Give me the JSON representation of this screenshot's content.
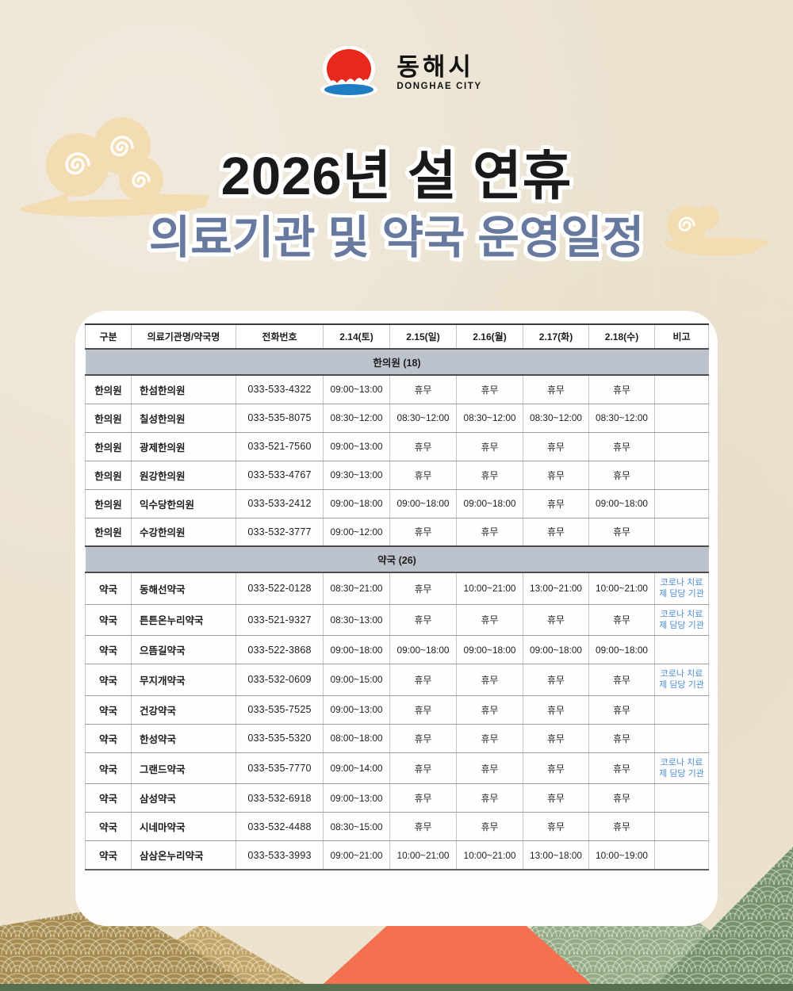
{
  "logo": {
    "korean": "동해시",
    "english": "DONGHAE CITY"
  },
  "title": {
    "line1": "2026년 설 연휴",
    "line2": "의료기관 및 약국 운영일정"
  },
  "table": {
    "headers": [
      "구분",
      "의료기관명/약국명",
      "전화번호",
      "2.14(토)",
      "2.15(일)",
      "2.16(월)",
      "2.17(화)",
      "2.18(수)",
      "비고"
    ],
    "sections": [
      {
        "title": "한의원 (18)",
        "rows": [
          [
            "한의원",
            "한섬한의원",
            "033-533-4322",
            "09:00~13:00",
            "휴무",
            "휴무",
            "휴무",
            "휴무",
            ""
          ],
          [
            "한의원",
            "칠성한의원",
            "033-535-8075",
            "08:30~12:00",
            "08:30~12:00",
            "08:30~12:00",
            "08:30~12:00",
            "08:30~12:00",
            ""
          ],
          [
            "한의원",
            "광제한의원",
            "033-521-7560",
            "09:00~13:00",
            "휴무",
            "휴무",
            "휴무",
            "휴무",
            ""
          ],
          [
            "한의원",
            "원강한의원",
            "033-533-4767",
            "09:30~13:00",
            "휴무",
            "휴무",
            "휴무",
            "휴무",
            ""
          ],
          [
            "한의원",
            "익수당한의원",
            "033-533-2412",
            "09:00~18:00",
            "09:00~18:00",
            "09:00~18:00",
            "휴무",
            "09:00~18:00",
            ""
          ],
          [
            "한의원",
            "수강한의원",
            "033-532-3777",
            "09:00~12:00",
            "휴무",
            "휴무",
            "휴무",
            "휴무",
            ""
          ]
        ]
      },
      {
        "title": "약국 (26)",
        "rows": [
          [
            "약국",
            "동해선약국",
            "033-522-0128",
            "08:30~21:00",
            "휴무",
            "10:00~21:00",
            "13:00~21:00",
            "10:00~21:00",
            "코로나 치료제 담당 기관"
          ],
          [
            "약국",
            "튼튼온누리약국",
            "033-521-9327",
            "08:30~13:00",
            "휴무",
            "휴무",
            "휴무",
            "휴무",
            "코로나 치료제 담당 기관"
          ],
          [
            "약국",
            "으뜸길약국",
            "033-522-3868",
            "09:00~18:00",
            "09:00~18:00",
            "09:00~18:00",
            "09:00~18:00",
            "09:00~18:00",
            ""
          ],
          [
            "약국",
            "무지개약국",
            "033-532-0609",
            "09:00~15:00",
            "휴무",
            "휴무",
            "휴무",
            "휴무",
            "코로나 치료제 담당 기관"
          ],
          [
            "약국",
            "건강약국",
            "033-535-7525",
            "09:00~13:00",
            "휴무",
            "휴무",
            "휴무",
            "휴무",
            ""
          ],
          [
            "약국",
            "한성약국",
            "033-535-5320",
            "08:00~18:00",
            "휴무",
            "휴무",
            "휴무",
            "휴무",
            ""
          ],
          [
            "약국",
            "그랜드약국",
            "033-535-7770",
            "09:00~14:00",
            "휴무",
            "휴무",
            "휴무",
            "휴무",
            "코로나 치료제 담당 기관"
          ],
          [
            "약국",
            "삼성약국",
            "033-532-6918",
            "09:00~13:00",
            "휴무",
            "휴무",
            "휴무",
            "휴무",
            ""
          ],
          [
            "약국",
            "시네마약국",
            "033-532-4488",
            "08:30~15:00",
            "휴무",
            "휴무",
            "휴무",
            "휴무",
            ""
          ],
          [
            "약국",
            "삼삼온누리약국",
            "033-533-3993",
            "09:00~21:00",
            "10:00~21:00",
            "10:00~21:00",
            "13:00~18:00",
            "10:00~19:00",
            ""
          ]
        ]
      }
    ]
  },
  "colors": {
    "background": "#ece3d1",
    "title_black": "#1a1a1a",
    "title_blue": "#67799e",
    "note_blue": "#4a90d8",
    "section_header_bg": "#bdc3cc",
    "logo_sun_red": "#e8271d",
    "logo_sea_blue": "#1f7ec2",
    "cloud_tan": "#f3dcb2",
    "mountain_tan": "#a68c50",
    "mountain_tan_light": "#c0a467",
    "mountain_orange": "#f3714e",
    "mountain_green_light": "#94ab87",
    "mountain_green_dark": "#75916c",
    "mountain_blue": "#6d9bbf"
  }
}
